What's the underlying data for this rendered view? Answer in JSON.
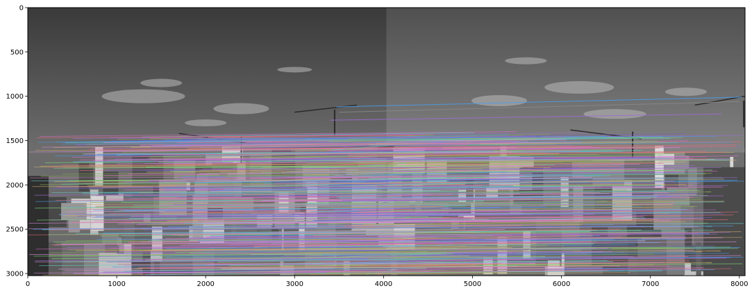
{
  "figure": {
    "background": "#ffffff",
    "axes_frame_color": "#000000"
  },
  "image_panel": {
    "description_visible": "grayscale_panorama_feature_matches",
    "left_half_tone": "#4a4a4a",
    "right_half_tone": "#6a6a6a",
    "sky_top": "#3b3b3b",
    "sky_bottom": "#8d8d8d",
    "city_tone_dark": "#5a5a5a",
    "city_tone_light": "#c8c8c8",
    "match_colors": [
      "#4c9be8",
      "#d86cc6",
      "#7bd37b",
      "#c9a96b",
      "#6e5fc9",
      "#e36c7c",
      "#67c9c9",
      "#9d6bd1",
      "#88aa55",
      "#d48cd8"
    ]
  },
  "chart_data": {
    "type": "image",
    "xlim": [
      0,
      8064
    ],
    "ylim": [
      3024,
      0
    ],
    "x_ticks": [
      0,
      1000,
      2000,
      3000,
      4000,
      5000,
      6000,
      7000,
      8000
    ],
    "y_ticks": [
      0,
      500,
      1000,
      1500,
      2000,
      2500,
      3000
    ],
    "x_tick_labels": [
      "0",
      "1000",
      "2000",
      "3000",
      "4000",
      "5000",
      "6000",
      "7000",
      "8000"
    ],
    "y_tick_labels": [
      "0",
      "500",
      "1000",
      "1500",
      "2000",
      "2500",
      "3000"
    ],
    "seam_x": 4032,
    "horizon_y": 1480,
    "skyline_left_x_start": 0,
    "skyline_right_x_end": 8064
  }
}
